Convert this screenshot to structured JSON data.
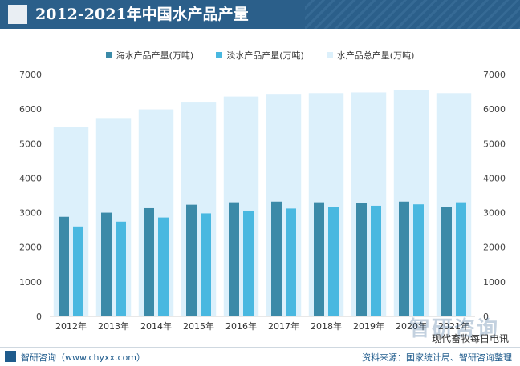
{
  "header": {
    "title": "2012-2021年中国水产品产量"
  },
  "footer": {
    "left": "智研咨询（www.chyxx.com）",
    "right": "资料来源：国家统计局、智研咨询整理"
  },
  "watermark": "智研咨询",
  "wechat_credit": "现代畜牧每日电讯",
  "colors": {
    "marine": "#3b8aa8",
    "freshwater": "#49b8e0",
    "total": "#dcf0fb"
  },
  "chart_data": {
    "type": "bar",
    "title": "2012-2021年中国水产品产量",
    "categories": [
      "2012年",
      "2013年",
      "2014年",
      "2015年",
      "2016年",
      "2017年",
      "2018年",
      "2019年",
      "2020年",
      "2021年"
    ],
    "series": [
      {
        "name": "海水产品产量(万吨)",
        "values": [
          2880,
          3000,
          3130,
          3230,
          3300,
          3320,
          3300,
          3280,
          3320,
          3160
        ]
      },
      {
        "name": "淡水产品产量(万吨)",
        "values": [
          2600,
          2740,
          2860,
          2980,
          3060,
          3120,
          3160,
          3200,
          3240,
          3300
        ]
      },
      {
        "name": "水产品总产量(万吨)",
        "values": [
          5480,
          5740,
          5990,
          6210,
          6360,
          6440,
          6460,
          6480,
          6550,
          6460
        ]
      }
    ],
    "yticks": [
      "0",
      "1000",
      "2000",
      "3000",
      "4000",
      "5000",
      "6000",
      "7000"
    ],
    "ylim": [
      0,
      7000
    ],
    "xlabel": "",
    "ylabel": ""
  }
}
